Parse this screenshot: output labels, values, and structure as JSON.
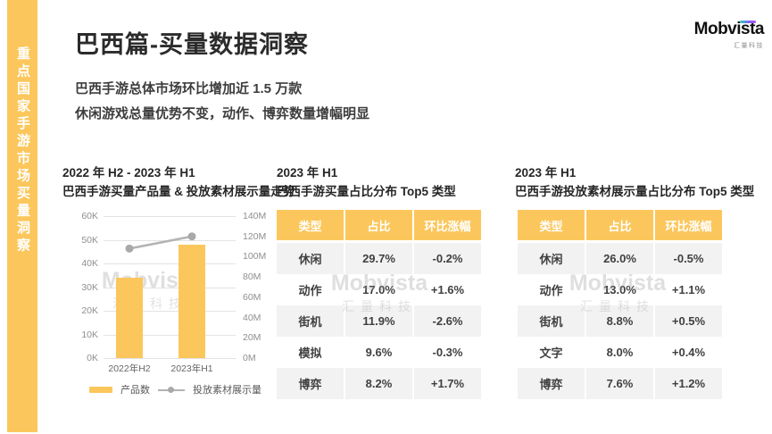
{
  "colors": {
    "accent": "#FBC75C",
    "header_text": "#2b2b2b",
    "table_row_alt": "#f2f2f2",
    "line_series": "#b3b3b3"
  },
  "sidebar": {
    "text": "重点国家手游市场买量洞察"
  },
  "header": {
    "title": "巴西篇-买量数据洞察",
    "subtitle_line1": "巴西手游总体市场环比增加近 1.5 万款",
    "subtitle_line2": "休闲游戏总量优势不变，动作、博弈数量增幅明显"
  },
  "logo": {
    "brand": "Mobvista",
    "sub": "汇量科技"
  },
  "watermark": {
    "brand": "Mobvista",
    "sub": "汇量科技"
  },
  "chart_panel": {
    "title_line1": "2022 年 H2 - 2023 年 H1",
    "title_line2": "巴西手游买量产品量 & 投放素材展示量走势",
    "legend": [
      {
        "label": "产品数"
      },
      {
        "label": "投放素材展示量"
      }
    ]
  },
  "chart_data": {
    "type": "bar",
    "categories": [
      "2022年H2",
      "2023年H1"
    ],
    "series": [
      {
        "name": "产品数",
        "type": "bar",
        "axis": "left",
        "values": [
          34000,
          48000
        ]
      },
      {
        "name": "投放素材展示量",
        "type": "line",
        "axis": "right",
        "values": [
          108000000,
          120000000
        ]
      }
    ],
    "title": "巴西手游买量产品量 & 投放素材展示量走势",
    "left_axis": {
      "ticks_top_to_bottom": [
        "60K",
        "50K",
        "40K",
        "30K",
        "20K",
        "10K",
        "0K"
      ],
      "max": 60000,
      "min": 0
    },
    "right_axis": {
      "ticks_top_to_bottom": [
        "140M",
        "120M",
        "100M",
        "80M",
        "60M",
        "40M",
        "20M",
        "0M"
      ],
      "max": 140000000,
      "min": 0
    },
    "grid": true,
    "legend_position": "bottom"
  },
  "table1": {
    "title_line1": "2023 年 H1",
    "title_line2": "巴西手游买量占比分布 Top5 类型",
    "headers": [
      "类型",
      "占比",
      "环比涨幅"
    ],
    "rows": [
      [
        "休闲",
        "29.7%",
        "-0.2%"
      ],
      [
        "动作",
        "17.0%",
        "+1.6%"
      ],
      [
        "街机",
        "11.9%",
        "-2.6%"
      ],
      [
        "模拟",
        "9.6%",
        "-0.3%"
      ],
      [
        "博弈",
        "8.2%",
        "+1.7%"
      ]
    ]
  },
  "table2": {
    "title_line1": "2023 年 H1",
    "title_line2": "巴西手游投放素材展示量占比分布 Top5 类型",
    "headers": [
      "类型",
      "占比",
      "环比涨幅"
    ],
    "rows": [
      [
        "休闲",
        "26.0%",
        "-0.5%"
      ],
      [
        "动作",
        "13.0%",
        "+1.1%"
      ],
      [
        "街机",
        "8.8%",
        "+0.5%"
      ],
      [
        "文字",
        "8.0%",
        "+0.4%"
      ],
      [
        "博弈",
        "7.6%",
        "+1.2%"
      ]
    ]
  }
}
